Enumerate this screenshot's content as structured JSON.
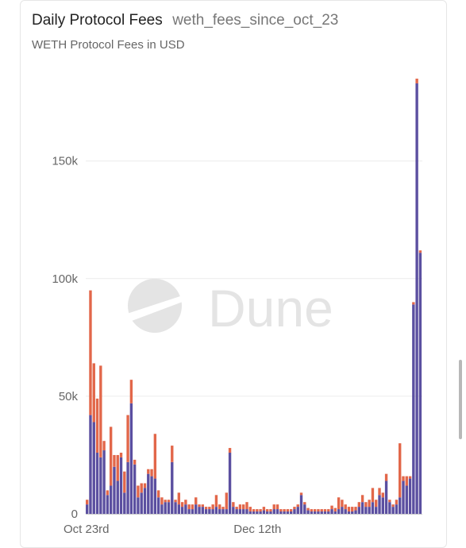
{
  "header": {
    "title": "Daily Protocol Fees",
    "query_name": "weth_fees_since_oct_23",
    "subtitle": "WETH Protocol Fees in USD"
  },
  "watermark": {
    "text": "Dune"
  },
  "chart_data": {
    "type": "bar",
    "stacked": true,
    "title": "Daily Protocol Fees",
    "subtitle": "WETH Protocol Fees in USD",
    "xlabel": "",
    "ylabel": "",
    "ylim": [
      0,
      185000
    ],
    "yticks": [
      0,
      50000,
      100000,
      150000
    ],
    "ytick_labels": [
      "0",
      "50k",
      "100k",
      "150k"
    ],
    "xtick_labels": [
      {
        "label": "Oct 23rd",
        "index": 0
      },
      {
        "label": "Dec 12th",
        "index": 50
      }
    ],
    "grid": true,
    "legend": "none",
    "series": [
      {
        "color": "#5b4fa0",
        "values": [
          4000,
          42000,
          39000,
          26000,
          24000,
          27000,
          8000,
          12000,
          20000,
          14000,
          24000,
          9000,
          22000,
          47000,
          21000,
          7000,
          9000,
          11000,
          17000,
          16000,
          15000,
          7000,
          4000,
          5000,
          5000,
          22000,
          5000,
          4000,
          3000,
          4000,
          2000,
          2000,
          4000,
          3000,
          3000,
          2000,
          2000,
          2000,
          3000,
          2000,
          2000,
          2000,
          26000,
          3000,
          2000,
          2000,
          2000,
          2000,
          1000,
          1000,
          1000,
          1000,
          1500,
          1000,
          1000,
          2000,
          2000,
          1000,
          1000,
          1000,
          1000,
          2000,
          3000,
          8000,
          4000,
          1500,
          1000,
          1000,
          1000,
          1000,
          1000,
          1000,
          2000,
          1000,
          2000,
          3000,
          2000,
          1000,
          1000,
          1500,
          3000,
          5000,
          3000,
          3000,
          5000,
          3000,
          8000,
          7000,
          14000,
          5000,
          3000,
          4000,
          7000,
          14000,
          12000,
          15000,
          89000,
          183000,
          111000
        ]
      },
      {
        "color": "#e2674a",
        "values": [
          2000,
          53000,
          25000,
          23000,
          39000,
          4000,
          2000,
          25000,
          5000,
          11000,
          2000,
          9000,
          20000,
          10000,
          2000,
          5000,
          4000,
          2000,
          2000,
          3000,
          19000,
          3000,
          3000,
          1000,
          1000,
          7000,
          1000,
          5000,
          2000,
          2000,
          2000,
          2000,
          3000,
          1000,
          1000,
          1000,
          1000,
          2000,
          5000,
          2000,
          1000,
          7000,
          2000,
          2000,
          1000,
          2000,
          2000,
          3000,
          2000,
          1000,
          1000,
          1000,
          1500,
          1000,
          1000,
          2000,
          2000,
          1000,
          1000,
          1000,
          1000,
          1000,
          1000,
          1000,
          1000,
          1000,
          1000,
          1000,
          1000,
          1000,
          1000,
          1000,
          1500,
          1500,
          5000,
          3000,
          2000,
          2000,
          2000,
          1500,
          2000,
          3000,
          2000,
          3000,
          6000,
          3000,
          3000,
          2000,
          3000,
          1000,
          1000,
          2000,
          23000,
          2000,
          4000,
          1000,
          1000,
          2000,
          1000
        ]
      }
    ]
  }
}
